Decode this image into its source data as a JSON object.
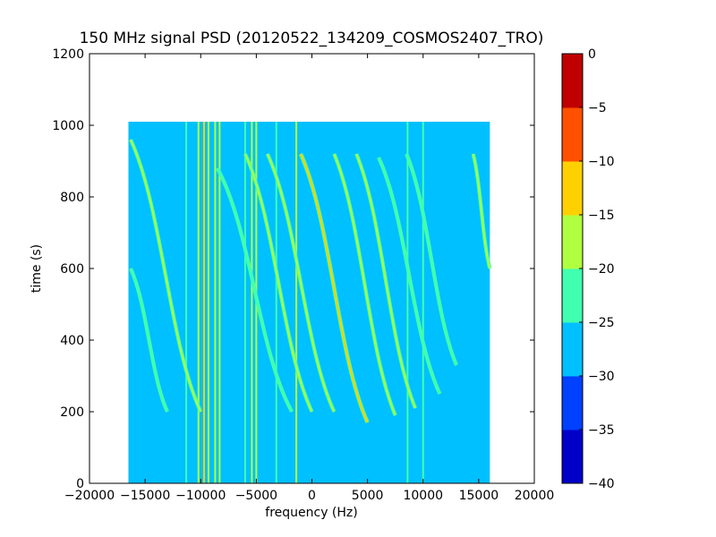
{
  "chart_data": {
    "type": "heatmap",
    "title": "150 MHz signal PSD (20120522_134209_COSMOS2407_TRO)",
    "xlabel": "frequency (Hz)",
    "ylabel": "time (s)",
    "xlim": [
      -20000,
      20000
    ],
    "ylim": [
      0,
      1200
    ],
    "xticks": [
      -20000,
      -15000,
      -10000,
      -5000,
      0,
      5000,
      10000,
      15000,
      20000
    ],
    "xtick_labels": [
      "−20000",
      "−15000",
      "−10000",
      "−5000",
      "0",
      "5000",
      "10000",
      "15000",
      "20000"
    ],
    "yticks": [
      0,
      200,
      400,
      600,
      800,
      1000,
      1200
    ],
    "ytick_labels": [
      "0",
      "200",
      "400",
      "600",
      "800",
      "1000",
      "1200"
    ],
    "data_extent": {
      "frequency_hz": [
        -16500,
        16000
      ],
      "time_s": [
        0,
        1010
      ]
    },
    "background_level_db": -27.5,
    "colorbar": {
      "levels": [
        -40,
        -35,
        -30,
        -25,
        -20,
        -15,
        -10,
        -5,
        0
      ],
      "tick_labels": [
        "−40",
        "−35",
        "−30",
        "−25",
        "−20",
        "−15",
        "−10",
        "−5",
        "0"
      ],
      "colors": [
        "#0000c8",
        "#0040ff",
        "#00c0ff",
        "#40ffb0",
        "#b0ff40",
        "#ffd000",
        "#ff5000",
        "#c00000"
      ]
    },
    "vertical_lines": [
      {
        "freq": -11300,
        "level_db": -22.5
      },
      {
        "freq": -10200,
        "level_db": -17.5
      },
      {
        "freq": -9700,
        "level_db": -12.5
      },
      {
        "freq": -9300,
        "level_db": -17.5
      },
      {
        "freq": -8700,
        "level_db": -17.5
      },
      {
        "freq": -8300,
        "level_db": -17.5
      },
      {
        "freq": -6000,
        "level_db": -22.5
      },
      {
        "freq": -5400,
        "level_db": -17.5
      },
      {
        "freq": -5000,
        "level_db": -17.5
      },
      {
        "freq": -3200,
        "level_db": -22.5
      },
      {
        "freq": -1400,
        "level_db": -17.5
      },
      {
        "freq": 8600,
        "level_db": -22.5
      },
      {
        "freq": 10000,
        "level_db": -22.5
      }
    ],
    "traces": [
      {
        "freq_top": -16300,
        "time_top": 960,
        "freq_bottom": -10000,
        "time_bottom": 200,
        "level_db": -17.5
      },
      {
        "freq_top": -16300,
        "time_top": 600,
        "freq_bottom": -13000,
        "time_bottom": 200,
        "level_db": -22.5
      },
      {
        "freq_top": -8500,
        "time_top": 880,
        "freq_bottom": -1800,
        "time_bottom": 200,
        "level_db": -22.5
      },
      {
        "freq_top": -6000,
        "time_top": 920,
        "freq_bottom": 0,
        "time_bottom": 200,
        "level_db": -17.5
      },
      {
        "freq_top": -4000,
        "time_top": 920,
        "freq_bottom": 2000,
        "time_bottom": 200,
        "level_db": -17.5
      },
      {
        "freq_top": -1000,
        "time_top": 920,
        "freq_bottom": 5000,
        "time_bottom": 170,
        "level_db": -12.5
      },
      {
        "freq_top": 2000,
        "time_top": 920,
        "freq_bottom": 7500,
        "time_bottom": 190,
        "level_db": -17.5
      },
      {
        "freq_top": 4000,
        "time_top": 920,
        "freq_bottom": 9300,
        "time_bottom": 210,
        "level_db": -17.5
      },
      {
        "freq_top": 6000,
        "time_top": 910,
        "freq_bottom": 11500,
        "time_bottom": 250,
        "level_db": -22.5
      },
      {
        "freq_top": 8500,
        "time_top": 920,
        "freq_bottom": 13000,
        "time_bottom": 330,
        "level_db": -22.5
      },
      {
        "freq_top": 14500,
        "time_top": 920,
        "freq_bottom": 16000,
        "time_bottom": 600,
        "level_db": -17.5
      }
    ],
    "grid": false
  }
}
